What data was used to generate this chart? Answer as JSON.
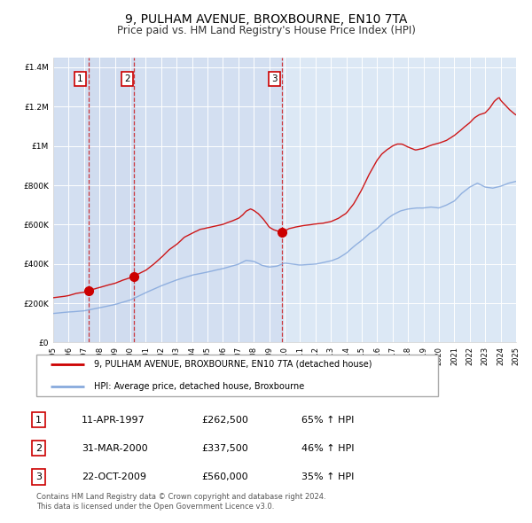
{
  "title": "9, PULHAM AVENUE, BROXBOURNE, EN10 7TA",
  "subtitle": "Price paid vs. HM Land Registry's House Price Index (HPI)",
  "title_fontsize": 10,
  "subtitle_fontsize": 8.5,
  "background_color": "#ffffff",
  "plot_bg_color": "#dce8f5",
  "grid_color": "#ffffff",
  "sale_color": "#cc0000",
  "hpi_color": "#88aadd",
  "vline_color": "#cc0000",
  "vband_color": "#ccd9ee",
  "ylim": [
    0,
    1450000
  ],
  "yticks": [
    0,
    200000,
    400000,
    600000,
    800000,
    1000000,
    1200000,
    1400000
  ],
  "ytick_labels": [
    "£0",
    "£200K",
    "£400K",
    "£600K",
    "£800K",
    "£1M",
    "£1.2M",
    "£1.4M"
  ],
  "xlabel_years": [
    "1995",
    "1996",
    "1997",
    "1998",
    "1999",
    "2000",
    "2001",
    "2002",
    "2003",
    "2004",
    "2005",
    "2006",
    "2007",
    "2008",
    "2009",
    "2010",
    "2011",
    "2012",
    "2013",
    "2014",
    "2015",
    "2016",
    "2017",
    "2018",
    "2019",
    "2020",
    "2021",
    "2022",
    "2023",
    "2024",
    "2025"
  ],
  "sales": [
    {
      "date": 1997.28,
      "price": 262500,
      "label": "1"
    },
    {
      "date": 2000.25,
      "price": 337500,
      "label": "2"
    },
    {
      "date": 2009.81,
      "price": 560000,
      "label": "3"
    }
  ],
  "legend_sale_label": "9, PULHAM AVENUE, BROXBOURNE, EN10 7TA (detached house)",
  "legend_hpi_label": "HPI: Average price, detached house, Broxbourne",
  "table_rows": [
    {
      "num": "1",
      "date": "11-APR-1997",
      "price": "£262,500",
      "pct": "65% ↑ HPI"
    },
    {
      "num": "2",
      "date": "31-MAR-2000",
      "price": "£337,500",
      "pct": "46% ↑ HPI"
    },
    {
      "num": "3",
      "date": "22-OCT-2009",
      "price": "£560,000",
      "pct": "35% ↑ HPI"
    }
  ],
  "footer": "Contains HM Land Registry data © Crown copyright and database right 2024.\nThis data is licensed under the Open Government Licence v3.0."
}
